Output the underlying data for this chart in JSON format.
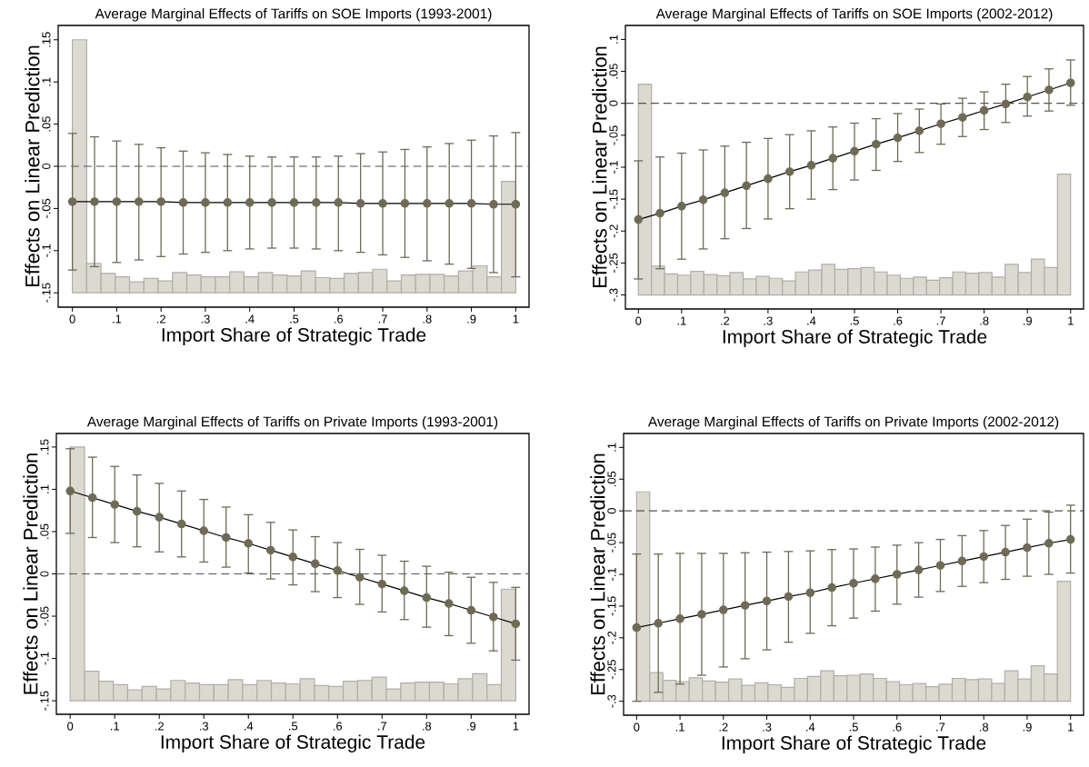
{
  "chart_data": [
    {
      "type": "line",
      "title": "Average Marginal Effects of Tariffs on SOE Imports (1993-2001)",
      "xlabel": "Import Share of Strategic Trade",
      "ylabel": "Effects on Linear Prediction",
      "xlim": [
        -0.032,
        1.03
      ],
      "ylim": [
        -0.167,
        0.167
      ],
      "xticks": [
        0,
        {
          "value": 0.1,
          "label": ".1"
        },
        {
          "value": 0.2,
          "label": ".2"
        },
        {
          "value": 0.3,
          "label": ".3"
        },
        {
          "value": 0.4,
          "label": ".4"
        },
        {
          "value": 0.5,
          "label": ".5"
        },
        {
          "value": 0.6,
          "label": ".6"
        },
        {
          "value": 0.7,
          "label": ".7"
        },
        {
          "value": 0.8,
          "label": ".8"
        },
        {
          "value": 0.9,
          "label": ".9"
        },
        1
      ],
      "yticks": [
        {
          "value": -0.15,
          "label": "-.15"
        },
        {
          "value": -0.1,
          "label": "-.1"
        },
        {
          "value": -0.05,
          "label": "-.05"
        },
        0,
        {
          "value": 0.05,
          "label": ".05"
        },
        {
          "value": 0.1,
          "label": ".1"
        },
        {
          "value": 0.15,
          "label": ".15"
        }
      ],
      "ref_lines": [
        {
          "axis": "y",
          "value": 0,
          "line_style": "dashed",
          "color": "#55554a"
        }
      ],
      "marker": "circle",
      "series": [
        {
          "type": "histogram",
          "color": "#dcd9d1",
          "bins": [
            0,
            0.0323,
            0.0645,
            0.0968,
            0.129,
            0.1613,
            0.1935,
            0.2258,
            0.2581,
            0.2903,
            0.3226,
            0.3548,
            0.3871,
            0.4194,
            0.4516,
            0.4839,
            0.5161,
            0.5484,
            0.5806,
            0.6129,
            0.6452,
            0.6774,
            0.7097,
            0.7419,
            0.7742,
            0.8065,
            0.8387,
            0.871,
            0.9032,
            0.9355,
            0.9677,
            1
          ],
          "base": [
            -0.15,
            -0.15,
            -0.15,
            -0.15,
            -0.15,
            -0.15,
            -0.15,
            -0.15,
            -0.15,
            -0.15,
            -0.15,
            -0.15,
            -0.15,
            -0.15,
            -0.15,
            -0.15,
            -0.15,
            -0.15,
            -0.15,
            -0.15,
            -0.15,
            -0.15,
            -0.15,
            -0.15,
            -0.15,
            -0.15,
            -0.15,
            -0.15,
            -0.15,
            -0.15,
            -0.15
          ],
          "values": [
            0.3,
            0.035,
            0.023,
            0.019,
            0.013,
            0.017,
            0.014,
            0.024,
            0.021,
            0.019,
            0.019,
            0.025,
            0.019,
            0.024,
            0.021,
            0.02,
            0.026,
            0.018,
            0.017,
            0.023,
            0.024,
            0.028,
            0.014,
            0.021,
            0.022,
            0.022,
            0.02,
            0.026,
            0.032,
            0.019,
            0.132
          ]
        },
        {
          "color": "#6e6a55",
          "x": [
            0,
            0.05,
            0.1,
            0.15,
            0.2,
            0.25,
            0.3,
            0.35,
            0.4,
            0.45,
            0.5,
            0.55,
            0.6,
            0.65,
            0.7,
            0.75,
            0.8,
            0.85,
            0.9,
            0.95,
            1
          ],
          "values": [
            -0.042,
            -0.042,
            -0.042,
            -0.042,
            -0.042,
            -0.043,
            -0.043,
            -0.043,
            -0.043,
            -0.043,
            -0.043,
            -0.043,
            -0.043,
            -0.044,
            -0.044,
            -0.044,
            -0.044,
            -0.044,
            -0.044,
            -0.045,
            -0.045
          ],
          "errors": [
            [
              -0.123,
              0.039
            ],
            [
              -0.119,
              0.035
            ],
            [
              -0.114,
              0.03
            ],
            [
              -0.111,
              0.026
            ],
            [
              -0.107,
              0.022
            ],
            [
              -0.104,
              0.018
            ],
            [
              -0.102,
              0.016
            ],
            [
              -0.1,
              0.014
            ],
            [
              -0.098,
              0.012
            ],
            [
              -0.097,
              0.011
            ],
            [
              -0.097,
              0.011
            ],
            [
              -0.098,
              0.011
            ],
            [
              -0.1,
              0.012
            ],
            [
              -0.102,
              0.015
            ],
            [
              -0.105,
              0.017
            ],
            [
              -0.108,
              0.02
            ],
            [
              -0.112,
              0.023
            ],
            [
              -0.116,
              0.027
            ],
            [
              -0.121,
              0.031
            ],
            [
              -0.126,
              0.036
            ],
            [
              -0.131,
              0.04
            ]
          ]
        }
      ]
    },
    {
      "type": "line",
      "title": "Average Marginal Effects of Tariffs on SOE Imports (2002-2012)",
      "xlabel": "Import Share of Strategic Trade",
      "ylabel": "Effects on Linear Prediction",
      "xlim": [
        -0.03,
        1.03
      ],
      "ylim": [
        -0.322,
        0.122
      ],
      "xticks": [
        0,
        {
          "value": 0.1,
          "label": ".1"
        },
        {
          "value": 0.2,
          "label": ".2"
        },
        {
          "value": 0.3,
          "label": ".3"
        },
        {
          "value": 0.4,
          "label": ".4"
        },
        {
          "value": 0.5,
          "label": ".5"
        },
        {
          "value": 0.6,
          "label": ".6"
        },
        {
          "value": 0.7,
          "label": ".7"
        },
        {
          "value": 0.8,
          "label": ".8"
        },
        {
          "value": 0.9,
          "label": ".9"
        },
        1
      ],
      "yticks": [
        {
          "value": -0.3,
          "label": "-.3"
        },
        {
          "value": -0.25,
          "label": "-.25"
        },
        {
          "value": -0.2,
          "label": "-.2"
        },
        {
          "value": -0.15,
          "label": "-.15"
        },
        {
          "value": -0.1,
          "label": "-.1"
        },
        {
          "value": -0.05,
          "label": "-.05"
        },
        0,
        {
          "value": 0.05,
          "label": ".05"
        },
        {
          "value": 0.1,
          "label": ".1"
        }
      ],
      "ref_lines": [
        {
          "axis": "y",
          "value": 0,
          "line_style": "dashed",
          "color": "#55554a"
        }
      ],
      "marker": "circle",
      "series": [
        {
          "type": "histogram",
          "color": "#dcd9d1",
          "bins": [
            0,
            0.0303,
            0.0606,
            0.0909,
            0.1212,
            0.1515,
            0.1818,
            0.2121,
            0.2424,
            0.2727,
            0.303,
            0.3333,
            0.3636,
            0.3939,
            0.4242,
            0.4545,
            0.4848,
            0.5152,
            0.5455,
            0.5758,
            0.6061,
            0.6364,
            0.6667,
            0.697,
            0.7273,
            0.7576,
            0.7879,
            0.8182,
            0.8485,
            0.8788,
            0.9091,
            0.9394,
            0.9697,
            1
          ],
          "base": [
            -0.3,
            -0.3,
            -0.3,
            -0.3,
            -0.3,
            -0.3,
            -0.3,
            -0.3,
            -0.3,
            -0.3,
            -0.3,
            -0.3,
            -0.3,
            -0.3,
            -0.3,
            -0.3,
            -0.3,
            -0.3,
            -0.3,
            -0.3,
            -0.3,
            -0.3,
            -0.3,
            -0.3,
            -0.3,
            -0.3,
            -0.3,
            -0.3,
            -0.3,
            -0.3,
            -0.3,
            -0.3,
            -0.3
          ],
          "values": [
            0.33,
            0.045,
            0.033,
            0.031,
            0.037,
            0.032,
            0.03,
            0.035,
            0.025,
            0.029,
            0.026,
            0.022,
            0.036,
            0.039,
            0.048,
            0.04,
            0.041,
            0.043,
            0.036,
            0.031,
            0.026,
            0.028,
            0.023,
            0.027,
            0.036,
            0.034,
            0.035,
            0.028,
            0.048,
            0.035,
            0.056,
            0.043,
            0.189
          ]
        },
        {
          "color": "#6e6a55",
          "x": [
            0,
            0.05,
            0.1,
            0.15,
            0.2,
            0.25,
            0.3,
            0.35,
            0.4,
            0.45,
            0.5,
            0.55,
            0.6,
            0.65,
            0.7,
            0.75,
            0.8,
            0.85,
            0.9,
            0.95,
            1
          ],
          "values": [
            -0.182,
            -0.172,
            -0.161,
            -0.151,
            -0.14,
            -0.129,
            -0.118,
            -0.107,
            -0.097,
            -0.086,
            -0.075,
            -0.064,
            -0.054,
            -0.043,
            -0.032,
            -0.022,
            -0.011,
            -0.001,
            0.01,
            0.021,
            0.032
          ],
          "errors": [
            [
              -0.275,
              -0.09
            ],
            [
              -0.259,
              -0.084
            ],
            [
              -0.244,
              -0.078
            ],
            [
              -0.228,
              -0.073
            ],
            [
              -0.212,
              -0.067
            ],
            [
              -0.196,
              -0.061
            ],
            [
              -0.181,
              -0.055
            ],
            [
              -0.165,
              -0.049
            ],
            [
              -0.15,
              -0.043
            ],
            [
              -0.135,
              -0.037
            ],
            [
              -0.12,
              -0.031
            ],
            [
              -0.105,
              -0.024
            ],
            [
              -0.091,
              -0.016
            ],
            [
              -0.077,
              -0.009
            ],
            [
              -0.064,
              -0.001
            ],
            [
              -0.052,
              0.008
            ],
            [
              -0.041,
              0.018
            ],
            [
              -0.03,
              0.03
            ],
            [
              -0.02,
              0.042
            ],
            [
              -0.012,
              0.054
            ],
            [
              -0.003,
              0.068
            ]
          ]
        }
      ]
    },
    {
      "type": "line",
      "title": "Average Marginal Effects of Tariffs on Private Imports (1993-2001)",
      "xlabel": "Import Share of Strategic Trade",
      "ylabel": "Effects on Linear Prediction",
      "xlim": [
        -0.031,
        1.03
      ],
      "ylim": [
        -0.166,
        0.166
      ],
      "xticks": [
        0,
        {
          "value": 0.1,
          "label": ".1"
        },
        {
          "value": 0.2,
          "label": ".2"
        },
        {
          "value": 0.3,
          "label": ".3"
        },
        {
          "value": 0.4,
          "label": ".4"
        },
        {
          "value": 0.5,
          "label": ".5"
        },
        {
          "value": 0.6,
          "label": ".6"
        },
        {
          "value": 0.7,
          "label": ".7"
        },
        {
          "value": 0.8,
          "label": ".8"
        },
        {
          "value": 0.9,
          "label": ".9"
        },
        1
      ],
      "yticks": [
        {
          "value": -0.15,
          "label": "-.15"
        },
        {
          "value": -0.1,
          "label": "-.1"
        },
        {
          "value": -0.05,
          "label": "-.05"
        },
        0,
        {
          "value": 0.05,
          "label": ".05"
        },
        {
          "value": 0.1,
          "label": ".1"
        },
        {
          "value": 0.15,
          "label": ".15"
        }
      ],
      "ref_lines": [
        {
          "axis": "y",
          "value": 0,
          "line_style": "dashed",
          "color": "#55554a"
        }
      ],
      "marker": "circle",
      "series": [
        {
          "type": "histogram",
          "color": "#dcd9d1",
          "bins": [
            0,
            0.0323,
            0.0645,
            0.0968,
            0.129,
            0.1613,
            0.1935,
            0.2258,
            0.2581,
            0.2903,
            0.3226,
            0.3548,
            0.3871,
            0.4194,
            0.4516,
            0.4839,
            0.5161,
            0.5484,
            0.5806,
            0.6129,
            0.6452,
            0.6774,
            0.7097,
            0.7419,
            0.7742,
            0.8065,
            0.8387,
            0.871,
            0.9032,
            0.9355,
            0.9677,
            1
          ],
          "base": [
            -0.15,
            -0.15,
            -0.15,
            -0.15,
            -0.15,
            -0.15,
            -0.15,
            -0.15,
            -0.15,
            -0.15,
            -0.15,
            -0.15,
            -0.15,
            -0.15,
            -0.15,
            -0.15,
            -0.15,
            -0.15,
            -0.15,
            -0.15,
            -0.15,
            -0.15,
            -0.15,
            -0.15,
            -0.15,
            -0.15,
            -0.15,
            -0.15,
            -0.15,
            -0.15,
            -0.15
          ],
          "values": [
            0.3,
            0.035,
            0.023,
            0.019,
            0.013,
            0.017,
            0.014,
            0.024,
            0.021,
            0.019,
            0.019,
            0.025,
            0.019,
            0.024,
            0.021,
            0.02,
            0.026,
            0.018,
            0.017,
            0.023,
            0.024,
            0.028,
            0.014,
            0.021,
            0.022,
            0.022,
            0.02,
            0.026,
            0.032,
            0.019,
            0.132
          ]
        },
        {
          "color": "#6e6a55",
          "x": [
            0,
            0.05,
            0.1,
            0.15,
            0.2,
            0.25,
            0.3,
            0.35,
            0.4,
            0.45,
            0.5,
            0.55,
            0.6,
            0.65,
            0.7,
            0.75,
            0.8,
            0.85,
            0.9,
            0.95,
            1
          ],
          "values": [
            0.098,
            0.09,
            0.082,
            0.074,
            0.067,
            0.059,
            0.051,
            0.043,
            0.036,
            0.028,
            0.02,
            0.012,
            0.004,
            -0.004,
            -0.012,
            -0.02,
            -0.028,
            -0.035,
            -0.043,
            -0.051,
            -0.059
          ],
          "errors": [
            [
              0.048,
              0.148
            ],
            [
              0.043,
              0.138
            ],
            [
              0.037,
              0.127
            ],
            [
              0.032,
              0.117
            ],
            [
              0.026,
              0.107
            ],
            [
              0.02,
              0.098
            ],
            [
              0.014,
              0.088
            ],
            [
              0.008,
              0.079
            ],
            [
              0.001,
              0.07
            ],
            [
              -0.006,
              0.061
            ],
            [
              -0.013,
              0.052
            ],
            [
              -0.021,
              0.044
            ],
            [
              -0.028,
              0.037
            ],
            [
              -0.036,
              0.029
            ],
            [
              -0.045,
              0.022
            ],
            [
              -0.054,
              0.015
            ],
            [
              -0.063,
              0.009
            ],
            [
              -0.073,
              0.002
            ],
            [
              -0.082,
              -0.004
            ],
            [
              -0.091,
              -0.01
            ],
            [
              -0.102,
              -0.016
            ]
          ]
        }
      ]
    },
    {
      "type": "line",
      "title": "Average Marginal Effects of Tariffs on Private Imports (2002-2012)",
      "xlabel": "Import Share of Strategic Trade",
      "ylabel": "Effects on Linear Prediction",
      "xlim": [
        -0.03,
        1.03
      ],
      "ylim": [
        -0.322,
        0.122
      ],
      "xticks": [
        0,
        {
          "value": 0.1,
          "label": ".1"
        },
        {
          "value": 0.2,
          "label": ".2"
        },
        {
          "value": 0.3,
          "label": ".3"
        },
        {
          "value": 0.4,
          "label": ".4"
        },
        {
          "value": 0.5,
          "label": ".5"
        },
        {
          "value": 0.6,
          "label": ".6"
        },
        {
          "value": 0.7,
          "label": ".7"
        },
        {
          "value": 0.8,
          "label": ".8"
        },
        {
          "value": 0.9,
          "label": ".9"
        },
        1
      ],
      "yticks": [
        {
          "value": -0.3,
          "label": "-.3"
        },
        {
          "value": -0.25,
          "label": "-.25"
        },
        {
          "value": -0.2,
          "label": "-.2"
        },
        {
          "value": -0.15,
          "label": "-.15"
        },
        {
          "value": -0.1,
          "label": "-.1"
        },
        {
          "value": -0.05,
          "label": "-.05"
        },
        0,
        {
          "value": 0.05,
          "label": ".05"
        },
        {
          "value": 0.1,
          "label": ".1"
        }
      ],
      "ref_lines": [
        {
          "axis": "y",
          "value": 0,
          "line_style": "dashed",
          "color": "#55554a"
        }
      ],
      "marker": "circle",
      "series": [
        {
          "type": "histogram",
          "color": "#dcd9d1",
          "bins": [
            0,
            0.0303,
            0.0606,
            0.0909,
            0.1212,
            0.1515,
            0.1818,
            0.2121,
            0.2424,
            0.2727,
            0.303,
            0.3333,
            0.3636,
            0.3939,
            0.4242,
            0.4545,
            0.4848,
            0.5152,
            0.5455,
            0.5758,
            0.6061,
            0.6364,
            0.6667,
            0.697,
            0.7273,
            0.7576,
            0.7879,
            0.8182,
            0.8485,
            0.8788,
            0.9091,
            0.9394,
            0.9697,
            1
          ],
          "base": [
            -0.3,
            -0.3,
            -0.3,
            -0.3,
            -0.3,
            -0.3,
            -0.3,
            -0.3,
            -0.3,
            -0.3,
            -0.3,
            -0.3,
            -0.3,
            -0.3,
            -0.3,
            -0.3,
            -0.3,
            -0.3,
            -0.3,
            -0.3,
            -0.3,
            -0.3,
            -0.3,
            -0.3,
            -0.3,
            -0.3,
            -0.3,
            -0.3,
            -0.3,
            -0.3,
            -0.3,
            -0.3,
            -0.3
          ],
          "values": [
            0.33,
            0.045,
            0.033,
            0.031,
            0.037,
            0.032,
            0.03,
            0.035,
            0.025,
            0.029,
            0.026,
            0.022,
            0.036,
            0.039,
            0.048,
            0.04,
            0.041,
            0.043,
            0.036,
            0.031,
            0.026,
            0.028,
            0.023,
            0.027,
            0.036,
            0.034,
            0.035,
            0.028,
            0.048,
            0.035,
            0.056,
            0.043,
            0.189
          ]
        },
        {
          "color": "#6e6a55",
          "x": [
            0,
            0.05,
            0.1,
            0.15,
            0.2,
            0.25,
            0.3,
            0.35,
            0.4,
            0.45,
            0.5,
            0.55,
            0.6,
            0.65,
            0.7,
            0.75,
            0.8,
            0.85,
            0.9,
            0.95,
            1
          ],
          "values": [
            -0.184,
            -0.177,
            -0.17,
            -0.163,
            -0.156,
            -0.149,
            -0.142,
            -0.135,
            -0.129,
            -0.121,
            -0.114,
            -0.107,
            -0.1,
            -0.093,
            -0.086,
            -0.079,
            -0.072,
            -0.065,
            -0.058,
            -0.051,
            -0.045
          ],
          "errors": [
            [
              -0.3,
              -0.068
            ],
            [
              -0.286,
              -0.068
            ],
            [
              -0.273,
              -0.067
            ],
            [
              -0.259,
              -0.067
            ],
            [
              -0.246,
              -0.067
            ],
            [
              -0.233,
              -0.066
            ],
            [
              -0.219,
              -0.065
            ],
            [
              -0.207,
              -0.064
            ],
            [
              -0.193,
              -0.063
            ],
            [
              -0.181,
              -0.061
            ],
            [
              -0.169,
              -0.06
            ],
            [
              -0.158,
              -0.057
            ],
            [
              -0.147,
              -0.054
            ],
            [
              -0.136,
              -0.05
            ],
            [
              -0.127,
              -0.045
            ],
            [
              -0.119,
              -0.039
            ],
            [
              -0.113,
              -0.031
            ],
            [
              -0.108,
              -0.023
            ],
            [
              -0.103,
              -0.013
            ],
            [
              -0.1,
              -0.002
            ],
            [
              -0.098,
              0.009
            ]
          ]
        }
      ]
    }
  ]
}
